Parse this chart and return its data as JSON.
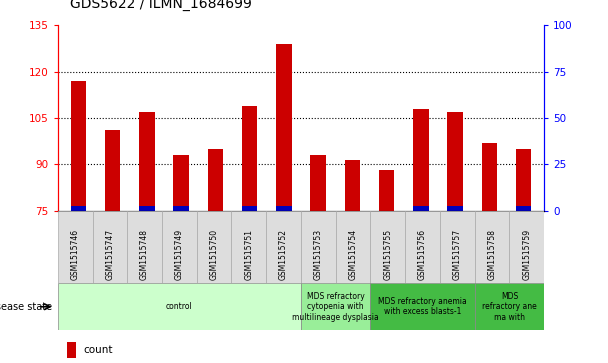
{
  "title": "GDS5622 / ILMN_1684699",
  "samples": [
    "GSM1515746",
    "GSM1515747",
    "GSM1515748",
    "GSM1515749",
    "GSM1515750",
    "GSM1515751",
    "GSM1515752",
    "GSM1515753",
    "GSM1515754",
    "GSM1515755",
    "GSM1515756",
    "GSM1515757",
    "GSM1515758",
    "GSM1515759"
  ],
  "counts": [
    117,
    101,
    107,
    93,
    95,
    109,
    129,
    93,
    91.5,
    88,
    108,
    107,
    97,
    95
  ],
  "percentile_ranks": [
    2.5,
    0,
    2.5,
    2.5,
    0,
    2.5,
    2.5,
    0,
    0,
    0,
    2.5,
    2.5,
    0,
    2.5
  ],
  "ymin": 75,
  "ymax": 135,
  "yticks_left": [
    75,
    90,
    105,
    120,
    135
  ],
  "yticks_right": [
    0,
    25,
    50,
    75,
    100
  ],
  "bar_color_red": "#cc0000",
  "bar_color_blue": "#0000bb",
  "bar_width": 0.45,
  "background_color": "#ffffff",
  "grid_color": "#000000",
  "group_spans": [
    {
      "start": 0,
      "end": 7,
      "label": "control",
      "color": "#ccffcc"
    },
    {
      "start": 7,
      "end": 9,
      "label": "MDS refractory\ncytopenia with\nmultilineage dysplasia",
      "color": "#99ee99"
    },
    {
      "start": 9,
      "end": 12,
      "label": "MDS refractory anemia\nwith excess blasts-1",
      "color": "#44bb44"
    },
    {
      "start": 12,
      "end": 14,
      "label": "MDS\nrefractory ane\nma with",
      "color": "#44bb44"
    }
  ],
  "legend_count_color": "#cc0000",
  "legend_pct_color": "#0000bb"
}
